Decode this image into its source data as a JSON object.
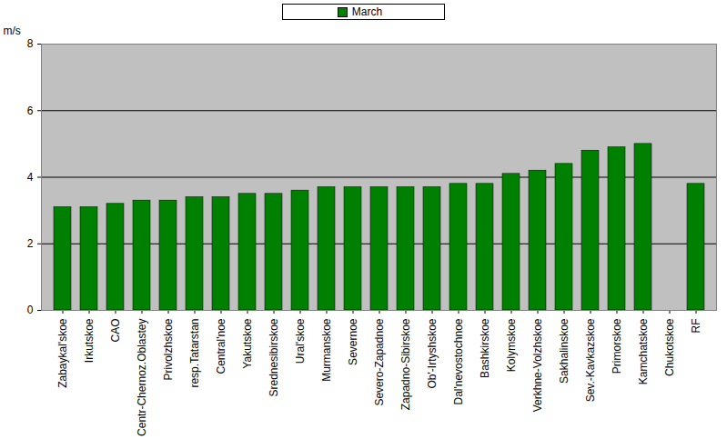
{
  "chart_data": {
    "type": "bar",
    "categories": [
      "Zabaykal'skoe",
      "Irkutskoe",
      "CAO",
      "Centr-Chernoz.Oblastey",
      "Privolzhskoe",
      "resp.Tatarstan",
      "Central'noe",
      "Yakutskoe",
      "Srednesibirskoe",
      "Ural'skoe",
      "Murmanskoe",
      "Severnoe",
      "Severo-Zapadnoe",
      "Zapadno-Sibirskoe",
      "Ob'-Irtyshskoe",
      "Dal'nevostochnoe",
      "Bashkirskoe",
      "Kolymskoe",
      "Verkhne-Volzhskoe",
      "Sakhalinskoe",
      "Sev.-Kavkazskoe",
      "Primorskoe",
      "Kamchatskoe",
      "Chukotskoe",
      "RF"
    ],
    "series": [
      {
        "name": "March",
        "color": "#008000",
        "values": [
          3.1,
          3.1,
          3.2,
          3.3,
          3.3,
          3.4,
          3.4,
          3.5,
          3.5,
          3.6,
          3.7,
          3.7,
          3.7,
          3.7,
          3.7,
          3.8,
          3.8,
          4.1,
          4.2,
          4.4,
          4.8,
          4.9,
          5.0,
          null,
          3.8
        ]
      }
    ],
    "y_label": "m/s",
    "ylim": [
      0,
      8
    ],
    "yticks": [
      0,
      2,
      4,
      6,
      8
    ],
    "grid": true,
    "legend": "top"
  }
}
